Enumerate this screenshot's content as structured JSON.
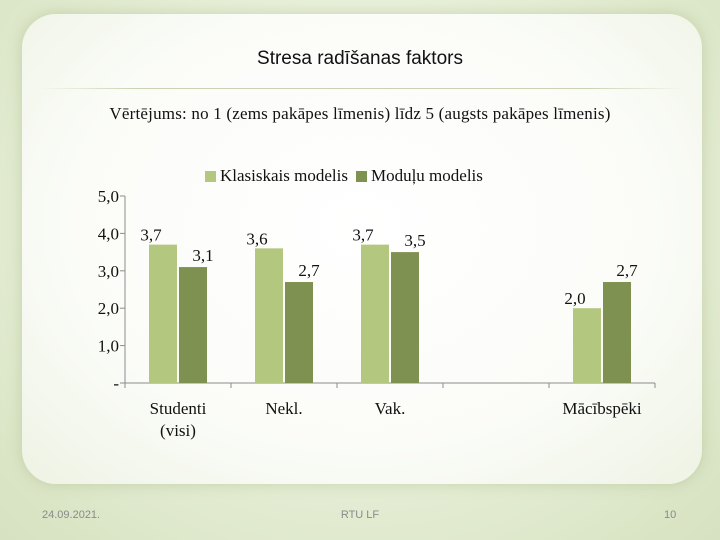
{
  "slide": {
    "title": "Stresa radīšanas faktors",
    "subtitle": "Vērtējums: no 1 (zems pakāpes līmenis) līdz 5 (augsts pakāpes līmenis)",
    "footer_date": "24.09.2021.",
    "footer_center": "RTU LF",
    "page_number": "10"
  },
  "chart_data": {
    "type": "bar",
    "title": "",
    "categories": [
      "Studenti (visi)",
      "Nekl.",
      "Vak.",
      "",
      "Mācībspēki"
    ],
    "series": [
      {
        "name": "Klasiskais modelis",
        "color": "#b4c77f",
        "values": [
          3.7,
          3.6,
          3.7,
          null,
          2.0
        ],
        "labels": [
          "3,7",
          "3,6",
          "3,7",
          "",
          "2,0"
        ]
      },
      {
        "name": "Moduļu modelis",
        "color": "#7f9150",
        "values": [
          3.1,
          2.7,
          3.5,
          null,
          2.7
        ],
        "labels": [
          "3,1",
          "2,7",
          "3,5",
          "",
          "2,7"
        ]
      }
    ],
    "yticks": [
      "-",
      "1,0",
      "2,0",
      "3,0",
      "4,0",
      "5,0"
    ],
    "ylim": [
      0,
      5
    ],
    "legend_position": "top",
    "grid": false
  }
}
